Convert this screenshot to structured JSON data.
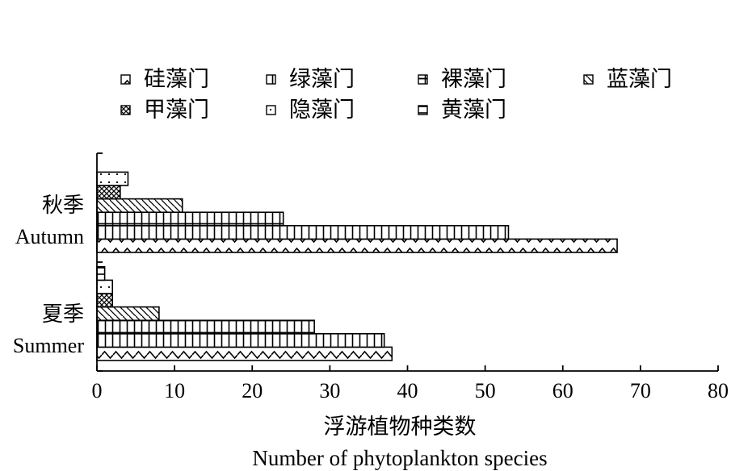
{
  "chart_data": {
    "type": "bar",
    "orientation": "horizontal",
    "categories": [
      {
        "zh": "秋季",
        "en": "Autumn"
      },
      {
        "zh": "夏季",
        "en": "Summer"
      }
    ],
    "series": [
      {
        "name": "硅藻门",
        "pattern": "wave",
        "values": [
          67,
          38
        ]
      },
      {
        "name": "绿藻门",
        "pattern": "vertical",
        "values": [
          53,
          37
        ]
      },
      {
        "name": "裸藻门",
        "pattern": "brick",
        "values": [
          24,
          28
        ]
      },
      {
        "name": "蓝藻门",
        "pattern": "diagonal",
        "values": [
          11,
          8
        ]
      },
      {
        "name": "甲藻门",
        "pattern": "crosshatch",
        "values": [
          3,
          2
        ]
      },
      {
        "name": "隐藻门",
        "pattern": "dots",
        "values": [
          4,
          2
        ]
      },
      {
        "name": "黄藻门",
        "pattern": "horizontal",
        "values": [
          0,
          1
        ]
      }
    ],
    "xlim": [
      0,
      80
    ],
    "xticks": [
      0,
      10,
      20,
      30,
      40,
      50,
      60,
      70,
      80
    ],
    "xlabel_zh": "浮游植物种类数",
    "xlabel_en": "Number of phytoplankton species",
    "legend_position": "top",
    "grid": false
  }
}
